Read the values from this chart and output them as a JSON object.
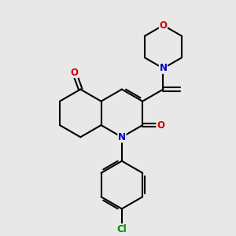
{
  "background_color": "#e8e8e8",
  "bond_color": "#000000",
  "bond_width": 1.5,
  "atom_colors": {
    "N": "#0000cc",
    "O": "#cc0000",
    "Cl": "#008800",
    "C": "#000000"
  },
  "font_size": 8.5,
  "figsize": [
    3.0,
    3.0
  ],
  "dpi": 100
}
